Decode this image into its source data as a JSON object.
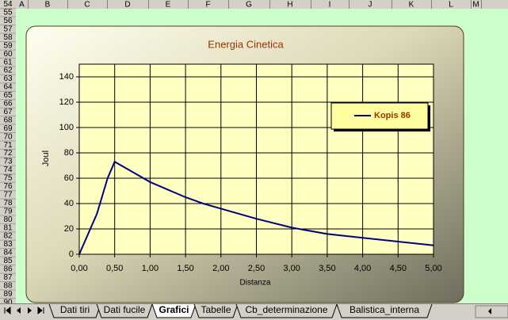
{
  "spreadsheet": {
    "columns": [
      "A",
      "B",
      "C",
      "D",
      "E",
      "F",
      "G",
      "H",
      "I",
      "J",
      "K",
      "L",
      "M"
    ],
    "rows": [
      54,
      55,
      56,
      57,
      58,
      59,
      60,
      61,
      62,
      63,
      64,
      65,
      66,
      67,
      68,
      69,
      70,
      71,
      72,
      73,
      74,
      75,
      76,
      77,
      78,
      79,
      80,
      81,
      82,
      83,
      84,
      85,
      86,
      87,
      88,
      89,
      90
    ]
  },
  "sheet_tabs": [
    "Dati tiri",
    "Dati fucile",
    "Grafici",
    "Tabelle",
    "Cb_determinazione",
    "Balistica_interna"
  ],
  "active_tab": 2,
  "chart_data": {
    "type": "line",
    "title": "Energia Cinetica",
    "x_label": "Distanza",
    "y_label": "Joul",
    "x": [
      0,
      0.25,
      0.4,
      0.5,
      0.75,
      1,
      1.25,
      1.5,
      1.75,
      2,
      2.5,
      3,
      3.5,
      4,
      4.5,
      5
    ],
    "series": [
      {
        "name": "Kopis 86",
        "color": "#000080",
        "values": [
          0,
          32,
          60,
          73,
          65,
          57,
          51,
          45,
          40,
          36,
          28,
          21,
          16,
          13,
          10,
          7
        ]
      }
    ],
    "xlim": [
      0,
      5
    ],
    "xticks": [
      {
        "value": 0,
        "label": "0,00"
      },
      {
        "value": 0.5,
        "label": "0,50"
      },
      {
        "value": 1,
        "label": "1,00"
      },
      {
        "value": 1.5,
        "label": "1,50"
      },
      {
        "value": 2,
        "label": "2,00"
      },
      {
        "value": 2.5,
        "label": "2,50"
      },
      {
        "value": 3,
        "label": "3,00"
      },
      {
        "value": 3.5,
        "label": "3,50"
      },
      {
        "value": 4,
        "label": "4,00"
      },
      {
        "value": 4.5,
        "label": "4,50"
      },
      {
        "value": 5,
        "label": "5,00"
      }
    ],
    "ylim": [
      0,
      150
    ],
    "yticks": [
      0,
      20,
      40,
      60,
      80,
      100,
      120,
      140
    ],
    "grid": true,
    "legend": "right"
  }
}
